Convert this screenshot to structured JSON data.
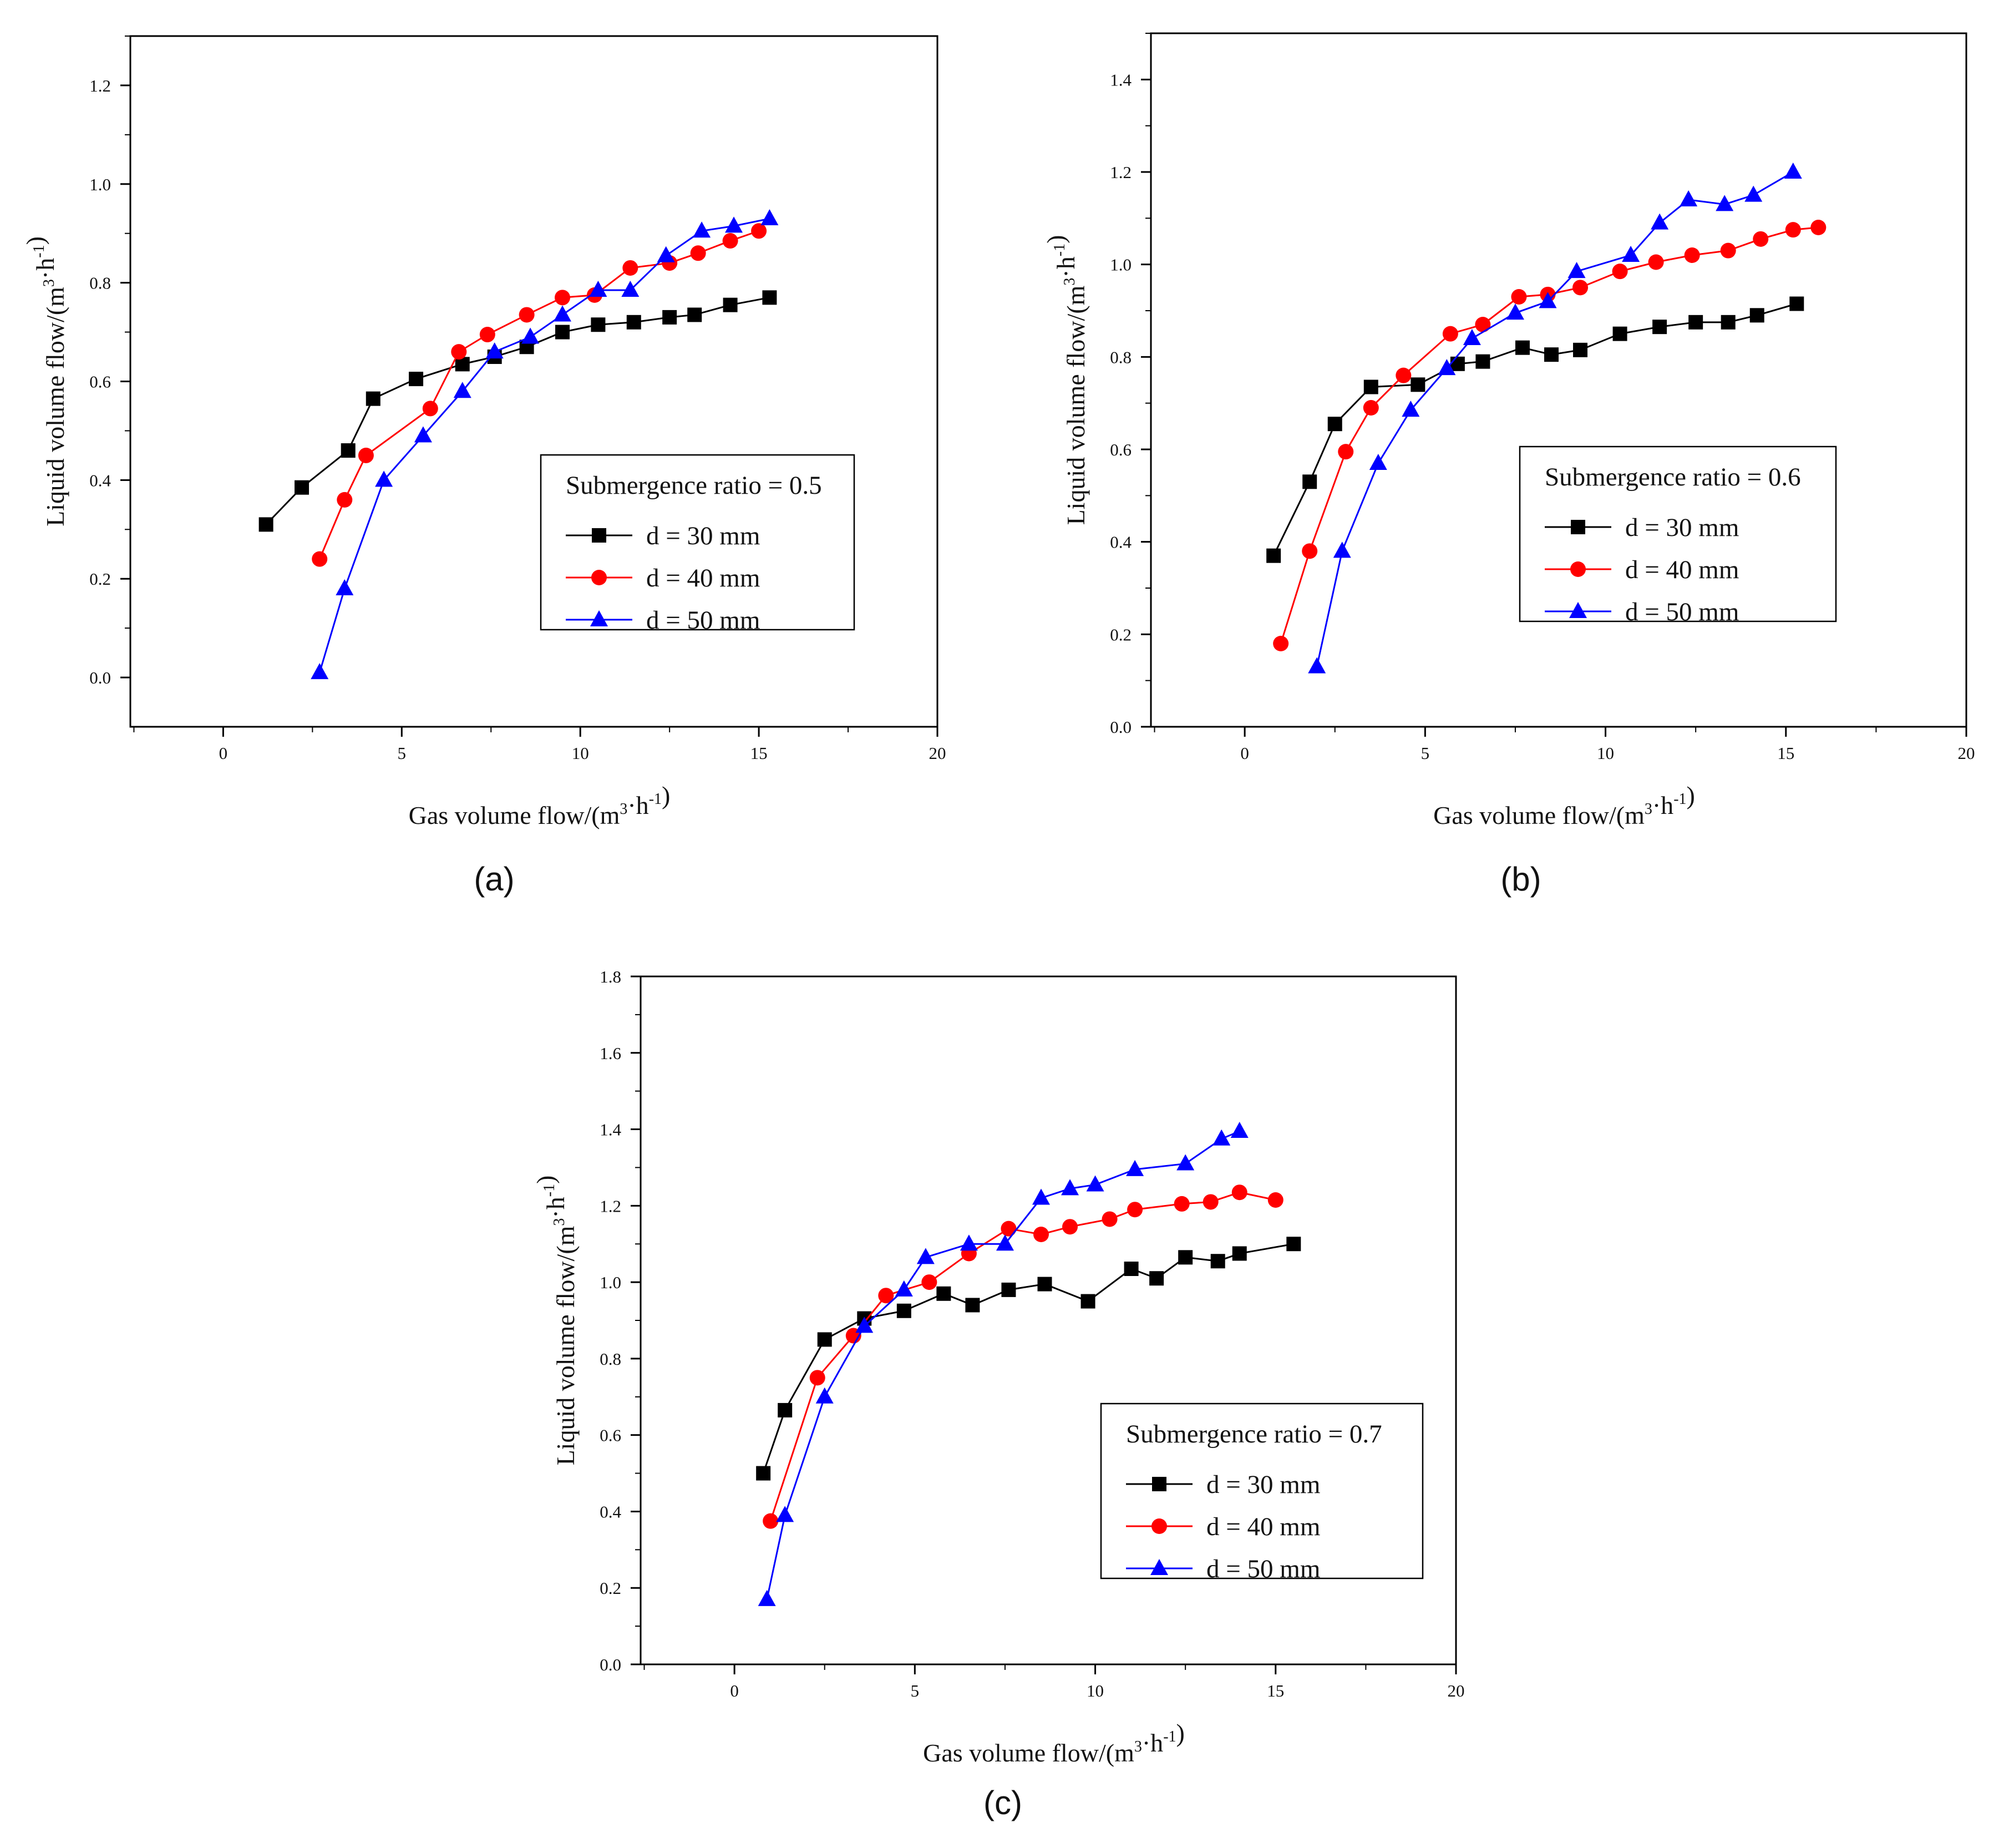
{
  "chart_data": [
    {
      "type": "line",
      "panel_label": "(a)",
      "xlabel": "Gas volume flow/(m3·h-1)",
      "ylabel": "Liquid volume flow/(m3·h-1)",
      "xlim": [
        -2.6,
        20
      ],
      "ylim": [
        -0.1,
        1.3
      ],
      "xticks": [
        "0",
        "5",
        "10",
        "15",
        "20"
      ],
      "yticks": [
        "0.0",
        "0.2",
        "0.4",
        "0.6",
        "0.8",
        "1.0",
        "1.2"
      ],
      "legend_title": "Submergence ratio = 0.5",
      "legend_position": "middle-right",
      "series": [
        {
          "name": "d = 30 mm",
          "color": "#000000",
          "marker": "square",
          "x": [
            1.2,
            2.2,
            3.5,
            4.2,
            5.4,
            6.7,
            7.6,
            8.5,
            9.5,
            10.5,
            11.5,
            12.5,
            13.2,
            14.2,
            15.3
          ],
          "y": [
            0.31,
            0.385,
            0.46,
            0.565,
            0.605,
            0.635,
            0.65,
            0.67,
            0.7,
            0.715,
            0.72,
            0.73,
            0.735,
            0.755,
            0.77
          ]
        },
        {
          "name": "d = 40 mm",
          "color": "#ff0000",
          "marker": "circle",
          "x": [
            2.7,
            3.4,
            4.0,
            5.8,
            6.6,
            7.4,
            8.5,
            9.5,
            10.4,
            11.4,
            12.5,
            13.3,
            14.2,
            15.0
          ],
          "y": [
            0.24,
            0.36,
            0.45,
            0.545,
            0.66,
            0.695,
            0.735,
            0.77,
            0.775,
            0.83,
            0.84,
            0.86,
            0.885,
            0.905
          ]
        },
        {
          "name": "d = 50 mm",
          "color": "#0000ff",
          "marker": "triangle",
          "x": [
            2.7,
            3.4,
            4.5,
            5.6,
            6.7,
            7.6,
            8.6,
            9.5,
            10.5,
            11.4,
            12.4,
            13.4,
            14.3,
            15.3
          ],
          "y": [
            0.01,
            0.18,
            0.4,
            0.49,
            0.58,
            0.66,
            0.69,
            0.735,
            0.785,
            0.785,
            0.855,
            0.905,
            0.915,
            0.93
          ]
        }
      ]
    },
    {
      "type": "line",
      "panel_label": "(b)",
      "xlabel": "Gas volume flow/(m3·h-1)",
      "ylabel": "Liquid volume flow/(m3·h-1)",
      "xlim": [
        -2.6,
        20
      ],
      "ylim": [
        0.0,
        1.5
      ],
      "xticks": [
        "0",
        "5",
        "10",
        "15",
        "20"
      ],
      "yticks": [
        "0.0",
        "0.2",
        "0.4",
        "0.6",
        "0.8",
        "1.0",
        "1.2",
        "1.4"
      ],
      "legend_title": "Submergence ratio = 0.6",
      "legend_position": "middle-right",
      "series": [
        {
          "name": "d = 30 mm",
          "color": "#000000",
          "marker": "square",
          "x": [
            0.8,
            1.8,
            2.5,
            3.5,
            4.8,
            5.9,
            6.6,
            7.7,
            8.5,
            9.3,
            10.4,
            11.5,
            12.5,
            13.4,
            14.2,
            15.3
          ],
          "y": [
            0.37,
            0.53,
            0.655,
            0.735,
            0.74,
            0.785,
            0.79,
            0.82,
            0.805,
            0.815,
            0.85,
            0.865,
            0.875,
            0.875,
            0.89,
            0.915
          ]
        },
        {
          "name": "d = 40 mm",
          "color": "#ff0000",
          "marker": "circle",
          "x": [
            1.0,
            1.8,
            2.8,
            3.5,
            4.4,
            5.7,
            6.6,
            7.6,
            8.4,
            9.3,
            10.4,
            11.4,
            12.4,
            13.4,
            14.3,
            15.2,
            15.9
          ],
          "y": [
            0.18,
            0.38,
            0.595,
            0.69,
            0.76,
            0.85,
            0.87,
            0.93,
            0.935,
            0.95,
            0.985,
            1.005,
            1.02,
            1.03,
            1.055,
            1.075,
            1.08
          ]
        },
        {
          "name": "d = 50 mm",
          "color": "#0000ff",
          "marker": "triangle",
          "x": [
            2.0,
            2.7,
            3.7,
            4.6,
            5.6,
            6.3,
            7.5,
            8.4,
            9.2,
            10.7,
            11.5,
            12.3,
            13.3,
            14.1,
            15.2
          ],
          "y": [
            0.13,
            0.38,
            0.57,
            0.685,
            0.775,
            0.84,
            0.895,
            0.92,
            0.985,
            1.02,
            1.09,
            1.14,
            1.13,
            1.15,
            1.2
          ]
        }
      ]
    },
    {
      "type": "line",
      "panel_label": "(c)",
      "xlabel": "Gas volume flow/(m3·h-1)",
      "ylabel": "Liquid volume flow/(m3·h-1)",
      "xlim": [
        -2.6,
        20
      ],
      "ylim": [
        0.0,
        1.8
      ],
      "xticks": [
        "0",
        "5",
        "10",
        "15",
        "20"
      ],
      "yticks": [
        "0.0",
        "0.2",
        "0.4",
        "0.6",
        "0.8",
        "1.0",
        "1.2",
        "1.4",
        "1.6",
        "1.8"
      ],
      "legend_title": "Submergence ratio = 0.7",
      "legend_position": "lower-right",
      "series": [
        {
          "name": "d = 30 mm",
          "color": "#000000",
          "marker": "square",
          "x": [
            0.8,
            1.4,
            2.5,
            3.6,
            4.7,
            5.8,
            6.6,
            7.6,
            8.6,
            9.8,
            11.0,
            11.7,
            12.5,
            13.4,
            14.0,
            15.5
          ],
          "y": [
            0.5,
            0.665,
            0.85,
            0.905,
            0.925,
            0.97,
            0.94,
            0.98,
            0.995,
            0.95,
            1.035,
            1.01,
            1.065,
            1.055,
            1.075,
            1.1
          ]
        },
        {
          "name": "d = 40 mm",
          "color": "#ff0000",
          "marker": "circle",
          "x": [
            1.0,
            2.3,
            3.3,
            4.2,
            5.4,
            6.5,
            7.6,
            8.5,
            9.3,
            10.4,
            11.1,
            12.4,
            13.2,
            14.0,
            15.0
          ],
          "y": [
            0.375,
            0.75,
            0.86,
            0.965,
            1.0,
            1.075,
            1.14,
            1.125,
            1.145,
            1.165,
            1.19,
            1.205,
            1.21,
            1.235,
            1.215
          ]
        },
        {
          "name": "d = 50 mm",
          "color": "#0000ff",
          "marker": "triangle",
          "x": [
            0.9,
            1.4,
            2.5,
            3.6,
            4.7,
            5.3,
            6.5,
            7.5,
            8.5,
            9.3,
            10.0,
            11.1,
            12.5,
            13.5,
            14.0
          ],
          "y": [
            0.17,
            0.39,
            0.7,
            0.885,
            0.98,
            1.065,
            1.1,
            1.1,
            1.22,
            1.245,
            1.255,
            1.295,
            1.31,
            1.375,
            1.395
          ]
        }
      ]
    }
  ]
}
